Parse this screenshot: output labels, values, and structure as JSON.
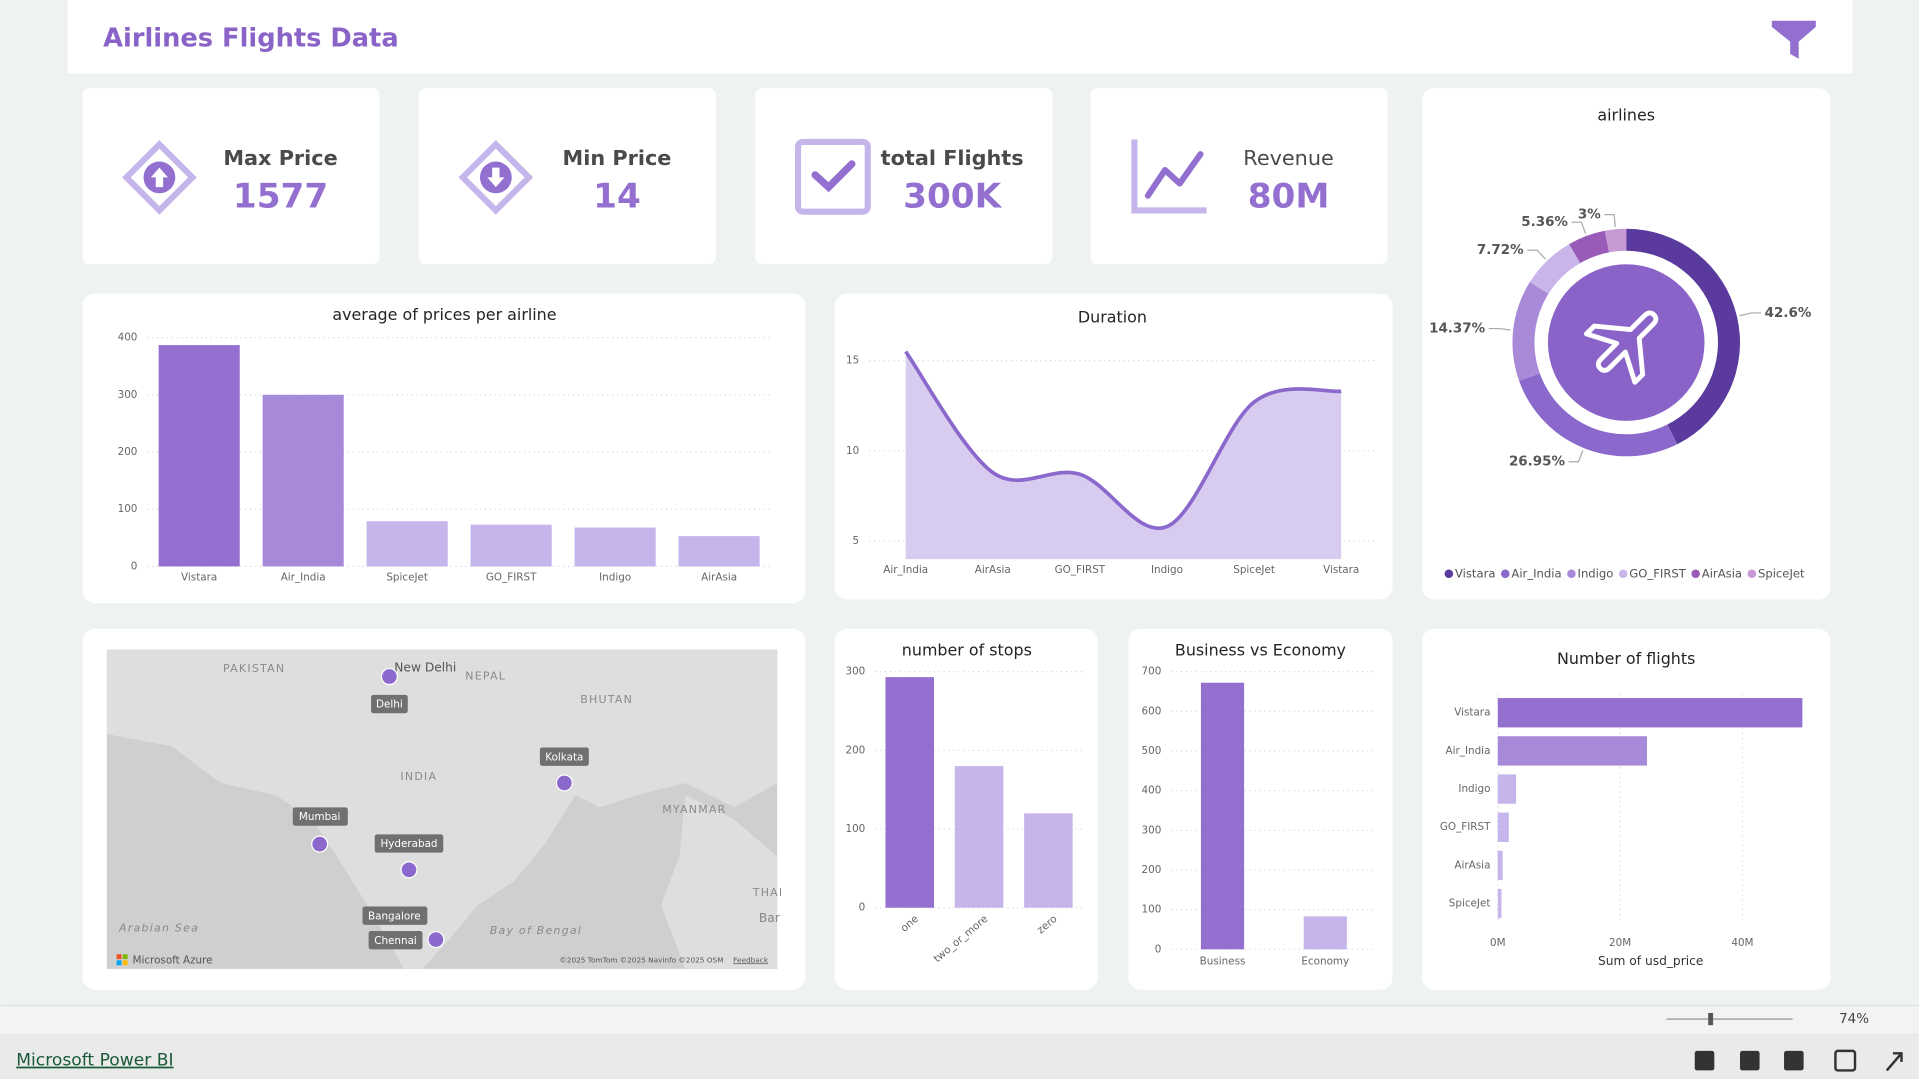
{
  "header": {
    "title": "Airlines Flights Data"
  },
  "kpis": [
    {
      "label": "Max Price",
      "value": 1577
    },
    {
      "label": "Min Price",
      "value": 14
    },
    {
      "label": "total Flights",
      "value": "300K"
    },
    {
      "label": "Revenue",
      "value": "80M"
    }
  ],
  "chart_data": [
    {
      "type": "bar",
      "title": "average of prices per airline",
      "categories": [
        "Vistara",
        "Air_India",
        "SpiceJet",
        "GO_FIRST",
        "Indigo",
        "AirAsia"
      ],
      "values": [
        387,
        300,
        79,
        73,
        68,
        53
      ],
      "colors": [
        "#9370d0",
        "#a68ad9",
        "#c5b5ea",
        "#c5b5ea",
        "#c5b5ea",
        "#c5b5ea"
      ],
      "ylim": [
        0,
        400
      ],
      "yticks": [
        0,
        100,
        200,
        300,
        400
      ],
      "grid": true
    },
    {
      "type": "area",
      "title": "Duration",
      "categories": [
        "Air_India",
        "AirAsia",
        "GO_FIRST",
        "Indigo",
        "SpiceJet",
        "Vistara"
      ],
      "values": [
        15.5,
        8.8,
        8.7,
        5.8,
        12.7,
        13.3
      ],
      "color": "#8a68cc",
      "fill": "#d8cbf0",
      "ylim": [
        4,
        16
      ],
      "yticks": [
        5,
        10,
        15
      ],
      "grid": true
    },
    {
      "type": "pie",
      "title": "airlines",
      "categories": [
        "Vistara",
        "Air_India",
        "Indigo",
        "GO_FIRST",
        "AirAsia",
        "SpiceJet"
      ],
      "values": [
        42.6,
        26.95,
        14.37,
        7.72,
        5.36,
        3
      ],
      "value_labels": [
        "42.6%",
        "26.95%",
        "14.37%",
        "7.72%",
        "5.36%",
        "3%"
      ],
      "colors": [
        "#5b3a9e",
        "#8a68cc",
        "#a98ad8",
        "#c9b5ea",
        "#9a5bb8",
        "#c79ad6"
      ],
      "legend": "bottom"
    },
    {
      "type": "bar",
      "title": "number of stops",
      "categories": [
        "one",
        "two_or_more",
        "zero"
      ],
      "values": [
        293,
        180,
        120
      ],
      "colors": [
        "#9370d0",
        "#c5b5ea",
        "#c5b5ea"
      ],
      "ylim": [
        0,
        300
      ],
      "yticks": [
        0,
        100,
        200,
        300
      ],
      "grid": true
    },
    {
      "type": "bar",
      "title": "Business vs Economy",
      "categories": [
        "Business",
        "Economy"
      ],
      "values": [
        672,
        83
      ],
      "colors": [
        "#9370d0",
        "#c5b5ea"
      ],
      "ylim": [
        0,
        700
      ],
      "yticks": [
        0,
        100,
        200,
        300,
        400,
        500,
        600,
        700
      ],
      "grid": true
    },
    {
      "type": "hbar",
      "title": "Number of flights",
      "categories": [
        "Vistara",
        "Air_India",
        "Indigo",
        "GO_FIRST",
        "AirAsia",
        "SpiceJet"
      ],
      "values": [
        49800000,
        24400000,
        3000000,
        1800000,
        800000,
        600000
      ],
      "colors": [
        "#9370d0",
        "#a68ad9",
        "#c5b5ea",
        "#c5b5ea",
        "#c5b5ea",
        "#c5b5ea"
      ],
      "xlabel": "Sum of usd_price",
      "xlim": [
        0,
        50000000
      ],
      "xticks": [
        {
          "value": 0,
          "label": "0M"
        },
        {
          "value": 20000000,
          "label": "20M"
        },
        {
          "value": 40000000,
          "label": "40M"
        }
      ],
      "grid": true
    }
  ],
  "map": {
    "labels": [
      "PAKISTAN",
      "NEPAL",
      "BHUTAN",
      "INDIA",
      "MYANMAR",
      "Arabian Sea",
      "Bay of Bengal",
      "New Delhi",
      "THAI",
      "Bar"
    ],
    "cities": [
      "Delhi",
      "Kolkata",
      "Mumbai",
      "Hyderabad",
      "Bangalore",
      "Chennai"
    ],
    "attribution": [
      "Microsoft Azure",
      "©2025 TomTom ©2025 Navinfo ©2025 OSM",
      "Feedback"
    ]
  },
  "footer": {
    "brand": "Microsoft Power BI",
    "zoom": "74%"
  }
}
